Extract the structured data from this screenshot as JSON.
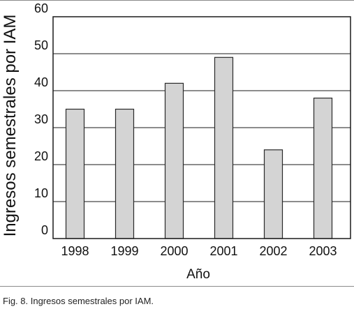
{
  "chart_data": {
    "type": "bar",
    "title": "",
    "xlabel": "Año",
    "ylabel": "Ingresos semestrales por IAM",
    "categories": [
      "1998",
      "1999",
      "2000",
      "2001",
      "2002",
      "2003"
    ],
    "values": [
      35,
      35,
      42,
      49,
      24,
      38
    ],
    "ylim": [
      0,
      60
    ],
    "yticks": [
      0,
      10,
      20,
      30,
      40,
      50,
      60
    ],
    "grid": true,
    "bar_color": "#d4d4d4",
    "bar_edge_color": "#2a2a2a"
  },
  "caption": "Fig. 8. Ingresos semestrales por IAM."
}
